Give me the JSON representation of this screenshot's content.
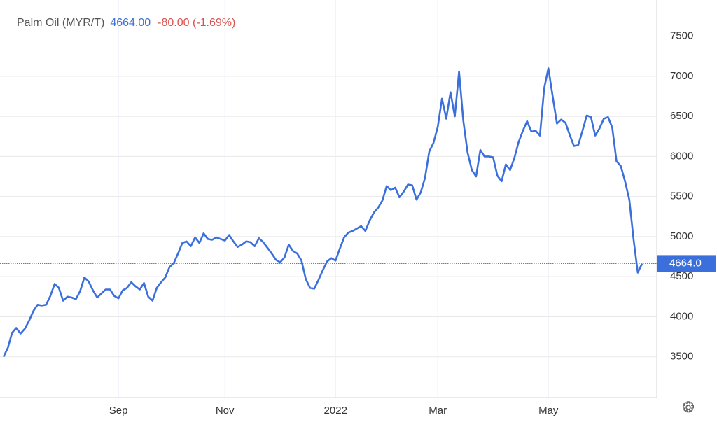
{
  "chart_data": {
    "type": "line",
    "header": {
      "price": "4664.00",
      "change": "-80.00 (-1.69%)"
    },
    "last_label": "4664.0",
    "series": [
      {
        "name": "Palm Oil (MYR/T)",
        "color": "#3a6fdc",
        "values": [
          3500,
          3610,
          3800,
          3860,
          3790,
          3850,
          3950,
          4070,
          4150,
          4140,
          4150,
          4260,
          4410,
          4360,
          4200,
          4250,
          4240,
          4220,
          4320,
          4490,
          4440,
          4330,
          4240,
          4290,
          4340,
          4340,
          4260,
          4230,
          4330,
          4360,
          4430,
          4380,
          4340,
          4420,
          4250,
          4200,
          4360,
          4430,
          4490,
          4620,
          4670,
          4790,
          4920,
          4940,
          4880,
          4990,
          4920,
          5040,
          4970,
          4960,
          4990,
          4970,
          4950,
          5020,
          4940,
          4870,
          4900,
          4940,
          4930,
          4880,
          4980,
          4930,
          4860,
          4790,
          4710,
          4680,
          4740,
          4900,
          4820,
          4790,
          4700,
          4470,
          4360,
          4350,
          4460,
          4580,
          4690,
          4730,
          4700,
          4850,
          4990,
          5050,
          5070,
          5100,
          5130,
          5070,
          5200,
          5300,
          5360,
          5450,
          5630,
          5580,
          5610,
          5490,
          5560,
          5650,
          5640,
          5460,
          5550,
          5730,
          6060,
          6170,
          6370,
          6720,
          6470,
          6800,
          6500,
          7060,
          6450,
          6050,
          5830,
          5750,
          6080,
          6000,
          6000,
          5990,
          5760,
          5690,
          5900,
          5830,
          5980,
          6180,
          6320,
          6440,
          6310,
          6320,
          6260,
          6850,
          7100,
          6750,
          6410,
          6460,
          6420,
          6270,
          6130,
          6140,
          6320,
          6510,
          6490,
          6260,
          6350,
          6470,
          6490,
          6360,
          5940,
          5880,
          5690,
          5460,
          4970,
          4550,
          4664
        ]
      }
    ],
    "categories": [
      null,
      null,
      null,
      null,
      null,
      null,
      null,
      null,
      null,
      null,
      null,
      null,
      null,
      null,
      null,
      null,
      null,
      null,
      null,
      null,
      null,
      null,
      null,
      null,
      null,
      null,
      null,
      "Sep",
      null,
      null,
      null,
      null,
      null,
      null,
      null,
      null,
      null,
      null,
      null,
      null,
      null,
      null,
      null,
      null,
      null,
      null,
      null,
      null,
      null,
      null,
      null,
      null,
      "Nov",
      null,
      null,
      null,
      null,
      null,
      null,
      null,
      null,
      null,
      null,
      null,
      null,
      null,
      null,
      null,
      null,
      null,
      null,
      null,
      null,
      null,
      null,
      null,
      null,
      null,
      "2022",
      null,
      null,
      null,
      null,
      null,
      null,
      null,
      null,
      null,
      null,
      null,
      null,
      null,
      null,
      null,
      null,
      null,
      null,
      null,
      null,
      null,
      null,
      null,
      "Mar",
      null,
      null,
      null,
      null,
      null,
      null,
      null,
      null,
      null,
      null,
      null,
      null,
      null,
      null,
      null,
      null,
      null,
      null,
      null,
      null,
      null,
      null,
      null,
      null,
      null,
      "May",
      null,
      null,
      null,
      null,
      null,
      null,
      null,
      null,
      null,
      null,
      null,
      null,
      null,
      null,
      null,
      null,
      null,
      null,
      null,
      null,
      null,
      null
    ],
    "ylim": [
      3000,
      7950
    ],
    "yticks": [
      3500,
      4000,
      4500,
      5000,
      5500,
      6000,
      6500,
      7000,
      7500
    ],
    "grid": true
  }
}
